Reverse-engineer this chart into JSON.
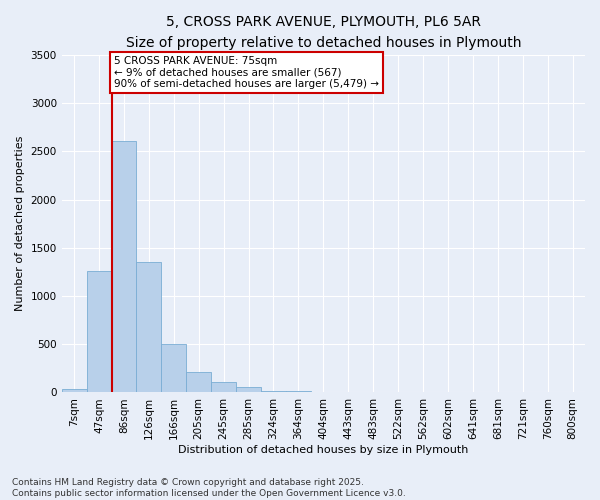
{
  "title": "5, CROSS PARK AVENUE, PLYMOUTH, PL6 5AR",
  "subtitle": "Size of property relative to detached houses in Plymouth",
  "xlabel": "Distribution of detached houses by size in Plymouth",
  "ylabel": "Number of detached properties",
  "categories": [
    "7sqm",
    "47sqm",
    "86sqm",
    "126sqm",
    "166sqm",
    "205sqm",
    "245sqm",
    "285sqm",
    "324sqm",
    "364sqm",
    "404sqm",
    "443sqm",
    "483sqm",
    "522sqm",
    "562sqm",
    "602sqm",
    "641sqm",
    "681sqm",
    "721sqm",
    "760sqm",
    "800sqm"
  ],
  "values": [
    40,
    1255,
    2610,
    1350,
    505,
    210,
    110,
    55,
    20,
    10,
    5,
    2,
    1,
    0,
    0,
    0,
    0,
    0,
    0,
    0,
    0
  ],
  "bar_color": "#b8d0ea",
  "bar_edge_color": "#7aadd4",
  "background_color": "#e8eef8",
  "grid_color": "#ffffff",
  "vline_x": 1.5,
  "vline_color": "#cc0000",
  "annotation_text": "5 CROSS PARK AVENUE: 75sqm\n← 9% of detached houses are smaller (567)\n90% of semi-detached houses are larger (5,479) →",
  "annotation_box_color": "#ffffff",
  "annotation_border_color": "#cc0000",
  "ylim": [
    0,
    3500
  ],
  "yticks": [
    0,
    500,
    1000,
    1500,
    2000,
    2500,
    3000,
    3500
  ],
  "footer": "Contains HM Land Registry data © Crown copyright and database right 2025.\nContains public sector information licensed under the Open Government Licence v3.0.",
  "title_fontsize": 10,
  "subtitle_fontsize": 9,
  "axis_label_fontsize": 8,
  "tick_fontsize": 7.5,
  "footer_fontsize": 6.5,
  "annot_fontsize": 7.5
}
